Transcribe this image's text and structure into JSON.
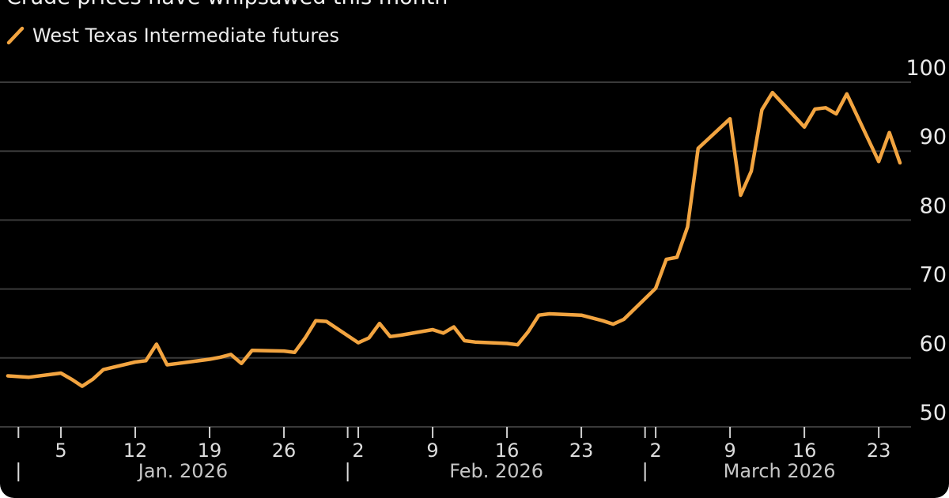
{
  "card": {
    "title": "Crude prices have whipsawed this month",
    "background": "#000000"
  },
  "legend": {
    "swatch_icon": "diagonal-line-swatch",
    "label": "West Texas Intermediate futures",
    "color": "#F2A440"
  },
  "chart_data": {
    "type": "line",
    "title": "Crude prices have whipsawed this month",
    "legend_position": "top-left",
    "grid": true,
    "x_unit": "days since 2026-01-01",
    "series": [
      {
        "name": "West Texas Intermediate futures",
        "color": "#F2A440",
        "points": [
          [
            -1,
            57.4
          ],
          [
            1,
            57.2
          ],
          [
            4,
            57.8
          ],
          [
            5,
            56.9
          ],
          [
            6,
            55.9
          ],
          [
            7,
            56.9
          ],
          [
            8,
            58.3
          ],
          [
            11,
            59.4
          ],
          [
            12,
            59.6
          ],
          [
            13,
            62.0
          ],
          [
            14,
            59.0
          ],
          [
            15,
            59.2
          ],
          [
            18,
            59.8
          ],
          [
            19,
            60.1
          ],
          [
            20,
            60.5
          ],
          [
            21,
            59.2
          ],
          [
            22,
            61.1
          ],
          [
            25,
            61.0
          ],
          [
            26,
            60.8
          ],
          [
            27,
            62.9
          ],
          [
            28,
            65.4
          ],
          [
            29,
            65.3
          ],
          [
            32,
            62.2
          ],
          [
            33,
            62.9
          ],
          [
            34,
            65.0
          ],
          [
            35,
            63.1
          ],
          [
            36,
            63.3
          ],
          [
            39,
            64.1
          ],
          [
            40,
            63.6
          ],
          [
            41,
            64.5
          ],
          [
            42,
            62.5
          ],
          [
            43,
            62.3
          ],
          [
            46,
            62.1
          ],
          [
            47,
            61.9
          ],
          [
            48,
            63.8
          ],
          [
            49,
            66.2
          ],
          [
            50,
            66.4
          ],
          [
            53,
            66.2
          ],
          [
            54,
            65.8
          ],
          [
            55,
            65.4
          ],
          [
            56,
            64.9
          ],
          [
            57,
            65.6
          ],
          [
            60,
            70.1
          ],
          [
            61,
            74.3
          ],
          [
            62,
            74.6
          ],
          [
            63,
            79.0
          ],
          [
            64,
            90.4
          ],
          [
            67,
            94.7
          ],
          [
            68,
            83.6
          ],
          [
            69,
            87.1
          ],
          [
            70,
            96.0
          ],
          [
            71,
            98.5
          ],
          [
            74,
            93.5
          ],
          [
            75,
            96.1
          ],
          [
            76,
            96.3
          ],
          [
            77,
            95.4
          ],
          [
            78,
            98.3
          ],
          [
            81,
            88.5
          ],
          [
            82,
            92.7
          ],
          [
            83,
            88.3
          ]
        ]
      }
    ],
    "y_axis": {
      "side": "right",
      "range": [
        50,
        100
      ],
      "ticks": [
        "50",
        "60",
        "70",
        "80",
        "90",
        "100"
      ]
    },
    "x_axis": {
      "week_ticks": [
        {
          "d": 4,
          "label": "5"
        },
        {
          "d": 11,
          "label": "12"
        },
        {
          "d": 18,
          "label": "19"
        },
        {
          "d": 25,
          "label": "26"
        },
        {
          "d": 32,
          "label": "2"
        },
        {
          "d": 39,
          "label": "9"
        },
        {
          "d": 46,
          "label": "16"
        },
        {
          "d": 53,
          "label": "23"
        },
        {
          "d": 60,
          "label": "2"
        },
        {
          "d": 67,
          "label": "9"
        },
        {
          "d": 74,
          "label": "16"
        },
        {
          "d": 81,
          "label": "23"
        }
      ],
      "month_ticks": [
        0,
        31,
        59
      ],
      "months": [
        {
          "label": "Jan. 2026",
          "start_d": 0,
          "end_d": 31
        },
        {
          "label": "Feb. 2026",
          "start_d": 31,
          "end_d": 59
        },
        {
          "label": "March 2026",
          "start_d": 59,
          "end_d": 84.3
        }
      ]
    },
    "colors": {
      "background": "#000000",
      "gridline": "#3a3a3a",
      "y_label_text": "#eaeaea",
      "tick_mark": "#d0d0d0",
      "week_label_text": "#dcdcdc",
      "month_label_text": "#c6c6c6"
    }
  }
}
